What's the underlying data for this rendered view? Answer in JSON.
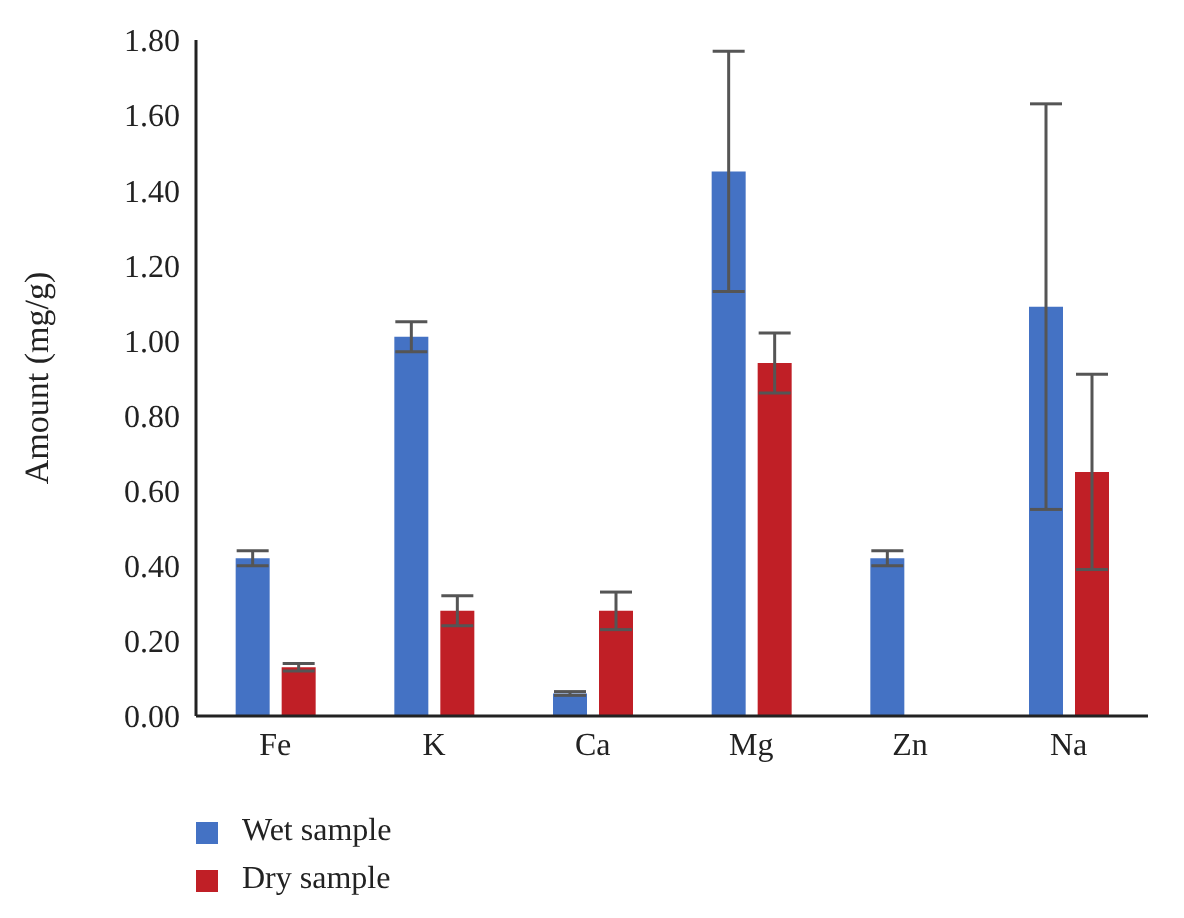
{
  "chart_data": {
    "type": "bar",
    "ylabel": "Amount (mg/g)",
    "categories": [
      "Fe",
      "K",
      "Ca",
      "Mg",
      "Zn",
      "Na"
    ],
    "series": [
      {
        "name": "Wet sample",
        "color": "#4472c4",
        "values": [
          0.42,
          1.01,
          0.06,
          1.45,
          0.42,
          1.09
        ],
        "errors": [
          0.02,
          0.04,
          0.005,
          0.32,
          0.02,
          0.54
        ]
      },
      {
        "name": "Dry sample",
        "color": "#c01f26",
        "values": [
          0.13,
          0.28,
          0.28,
          0.94,
          0,
          0.65
        ],
        "errors": [
          0.01,
          0.04,
          0.05,
          0.08,
          null,
          0.26
        ]
      }
    ],
    "ylim": [
      0,
      1.8
    ],
    "yticks": [
      {
        "value": 0,
        "label": "0.00"
      },
      {
        "value": 0.2,
        "label": "0.20"
      },
      {
        "value": 0.4,
        "label": "0.40"
      },
      {
        "value": 0.6,
        "label": "0.60"
      },
      {
        "value": 0.8,
        "label": "0.80"
      },
      {
        "value": 1,
        "label": "1.00"
      },
      {
        "value": 1.2,
        "label": "1.20"
      },
      {
        "value": 1.4,
        "label": "1.40"
      },
      {
        "value": 1.6,
        "label": "1.60"
      },
      {
        "value": 1.8,
        "label": "1.80"
      }
    ],
    "grid": false,
    "legend": "bottom left"
  }
}
